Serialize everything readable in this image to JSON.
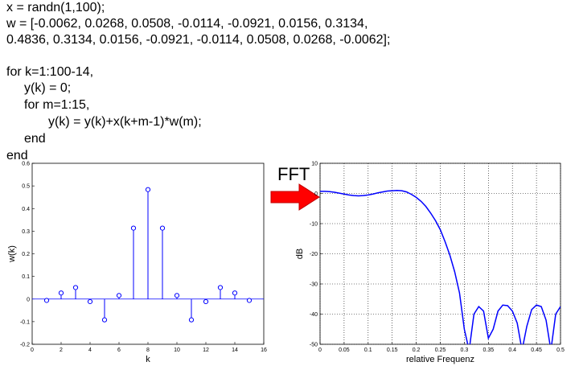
{
  "code": [
    "x = randn(1,100);",
    "w =  [-0.0062, 0.0268, 0.0508, -0.0114, -0.0921, 0.0156, 0.3134,",
    "0.4836, 0.3134, 0.0156, -0.0921, -0.0114, 0.0508, 0.0268, -0.0062];",
    "for k=1:100-14,",
    "y(k) = 0;",
    "for m=1:15,",
    "y(k) = y(k)+x(k+m-1)*w(m);",
    "end",
    "end"
  ],
  "annotation": "FFT",
  "chart_data": [
    {
      "type": "stem",
      "xlabel": "k",
      "ylabel": "w(k)",
      "color": "#0000ff",
      "grid": false,
      "x": [
        1,
        2,
        3,
        4,
        5,
        6,
        7,
        8,
        9,
        10,
        11,
        12,
        13,
        14,
        15
      ],
      "values": [
        -0.0062,
        0.0268,
        0.0508,
        -0.0114,
        -0.0921,
        0.0156,
        0.3134,
        0.4836,
        0.3134,
        0.0156,
        -0.0921,
        -0.0114,
        0.0508,
        0.0268,
        -0.0062
      ],
      "xlim": [
        0,
        16
      ],
      "xticks": [
        0,
        2,
        4,
        6,
        8,
        10,
        12,
        14,
        16
      ],
      "ylim": [
        -0.2,
        0.6
      ],
      "yticks": [
        -0.2,
        -0.1,
        0,
        0.1,
        0.2,
        0.3,
        0.4,
        0.5,
        0.6
      ]
    },
    {
      "type": "line",
      "xlabel": "relative Frequenz",
      "ylabel": "dB",
      "color": "#0000ff",
      "grid": true,
      "x": [
        0,
        0.01,
        0.02,
        0.03,
        0.04,
        0.05,
        0.06,
        0.07,
        0.08,
        0.09,
        0.1,
        0.11,
        0.12,
        0.13,
        0.14,
        0.15,
        0.16,
        0.17,
        0.18,
        0.19,
        0.2,
        0.21,
        0.22,
        0.23,
        0.24,
        0.25,
        0.26,
        0.27,
        0.28,
        0.29,
        0.3,
        0.31,
        0.32,
        0.33,
        0.34,
        0.35,
        0.36,
        0.37,
        0.38,
        0.39,
        0.4,
        0.41,
        0.42,
        0.43,
        0.44,
        0.45,
        0.46,
        0.47,
        0.48,
        0.49,
        0.5
      ],
      "values": [
        0.7,
        0.7,
        0.6,
        0.4,
        0.1,
        -0.2,
        -0.5,
        -0.7,
        -0.8,
        -0.7,
        -0.5,
        -0.2,
        0.2,
        0.5,
        0.8,
        0.9,
        1.0,
        0.9,
        0.5,
        -0.3,
        -1.3,
        -2.6,
        -4.3,
        -6.5,
        -9,
        -12,
        -16,
        -20.5,
        -26,
        -33,
        -45,
        -52,
        -40,
        -37.5,
        -39,
        -48,
        -45,
        -39,
        -37,
        -37.2,
        -39,
        -43,
        -52,
        -44,
        -38.5,
        -37,
        -37.5,
        -42,
        -52,
        -40,
        -37.5
      ],
      "xlim": [
        0,
        0.5
      ],
      "xticks": [
        0,
        0.05,
        0.1,
        0.15,
        0.2,
        0.25,
        0.3,
        0.35,
        0.4,
        0.45,
        0.5
      ],
      "ylim": [
        -50,
        10
      ],
      "yticks": [
        -50,
        -40,
        -30,
        -20,
        -10,
        0,
        10
      ]
    }
  ]
}
